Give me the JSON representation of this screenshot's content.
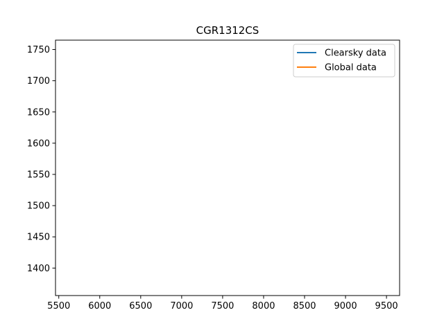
{
  "chart_data": {
    "type": "line",
    "title": "CGR1312CS",
    "xlabel": "",
    "ylabel": "",
    "xlim": [
      5460,
      9660
    ],
    "ylim": [
      1356,
      1765
    ],
    "xticks": [
      5500,
      6000,
      6500,
      7000,
      7500,
      8000,
      8500,
      9000,
      9500
    ],
    "yticks": [
      1400,
      1450,
      1500,
      1550,
      1600,
      1650,
      1700,
      1750
    ],
    "grid": false,
    "legend_position": "upper right",
    "series": [
      {
        "name": "Clearsky data",
        "color": "#1f77b4",
        "x": [],
        "y": []
      },
      {
        "name": "Global data",
        "color": "#ff7f0e",
        "x": [],
        "y": []
      }
    ]
  }
}
